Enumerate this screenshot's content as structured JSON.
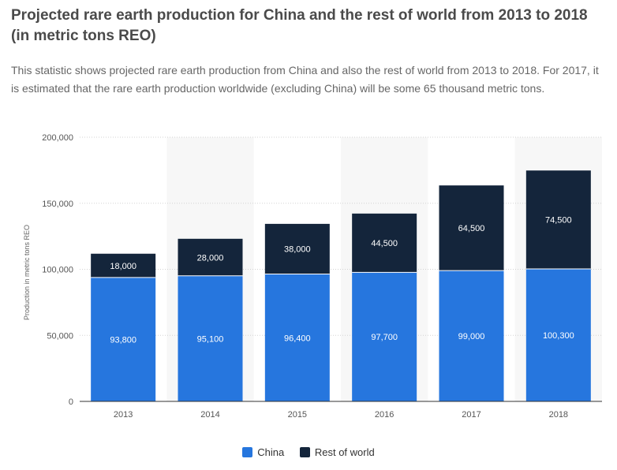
{
  "header": {
    "title": "Projected rare earth production for China and the rest of world from 2013 to 2018 (in metric tons REO)",
    "description": "This statistic shows projected rare earth production from China and also the rest of world from 2013 to 2018. For 2017, it is estimated that the rare earth production worldwide (excluding China) will be some 65 thousand metric tons."
  },
  "legend": {
    "china": "China",
    "rest": "Rest of world"
  },
  "colors": {
    "china": "#2676de",
    "rest": "#14253b",
    "band": "#f7f7f7",
    "grid": "#d3d3d3",
    "axis": "#333333"
  },
  "chart_data": {
    "type": "bar",
    "stacked": true,
    "categories": [
      "2013",
      "2014",
      "2015",
      "2016",
      "2017",
      "2018"
    ],
    "series": [
      {
        "name": "China",
        "values": [
          93800,
          95100,
          96400,
          97700,
          99000,
          100300
        ]
      },
      {
        "name": "Rest of world",
        "values": [
          18000,
          28000,
          38000,
          44500,
          64500,
          74500
        ]
      }
    ],
    "value_labels": {
      "China": [
        "93,800",
        "95,100",
        "96,400",
        "97,700",
        "99,000",
        "100,300"
      ],
      "Rest of world": [
        "18,000",
        "28,000",
        "38,000",
        "44,500",
        "64,500",
        "74,500"
      ]
    },
    "ylabel": "Production in metric tons REO",
    "ylim": [
      0,
      200000
    ],
    "yticks": [
      0,
      50000,
      100000,
      150000,
      200000
    ],
    "ytick_labels": [
      "0",
      "50,000",
      "100,000",
      "150,000",
      "200,000"
    ],
    "grid": true,
    "legend_position": "bottom"
  }
}
